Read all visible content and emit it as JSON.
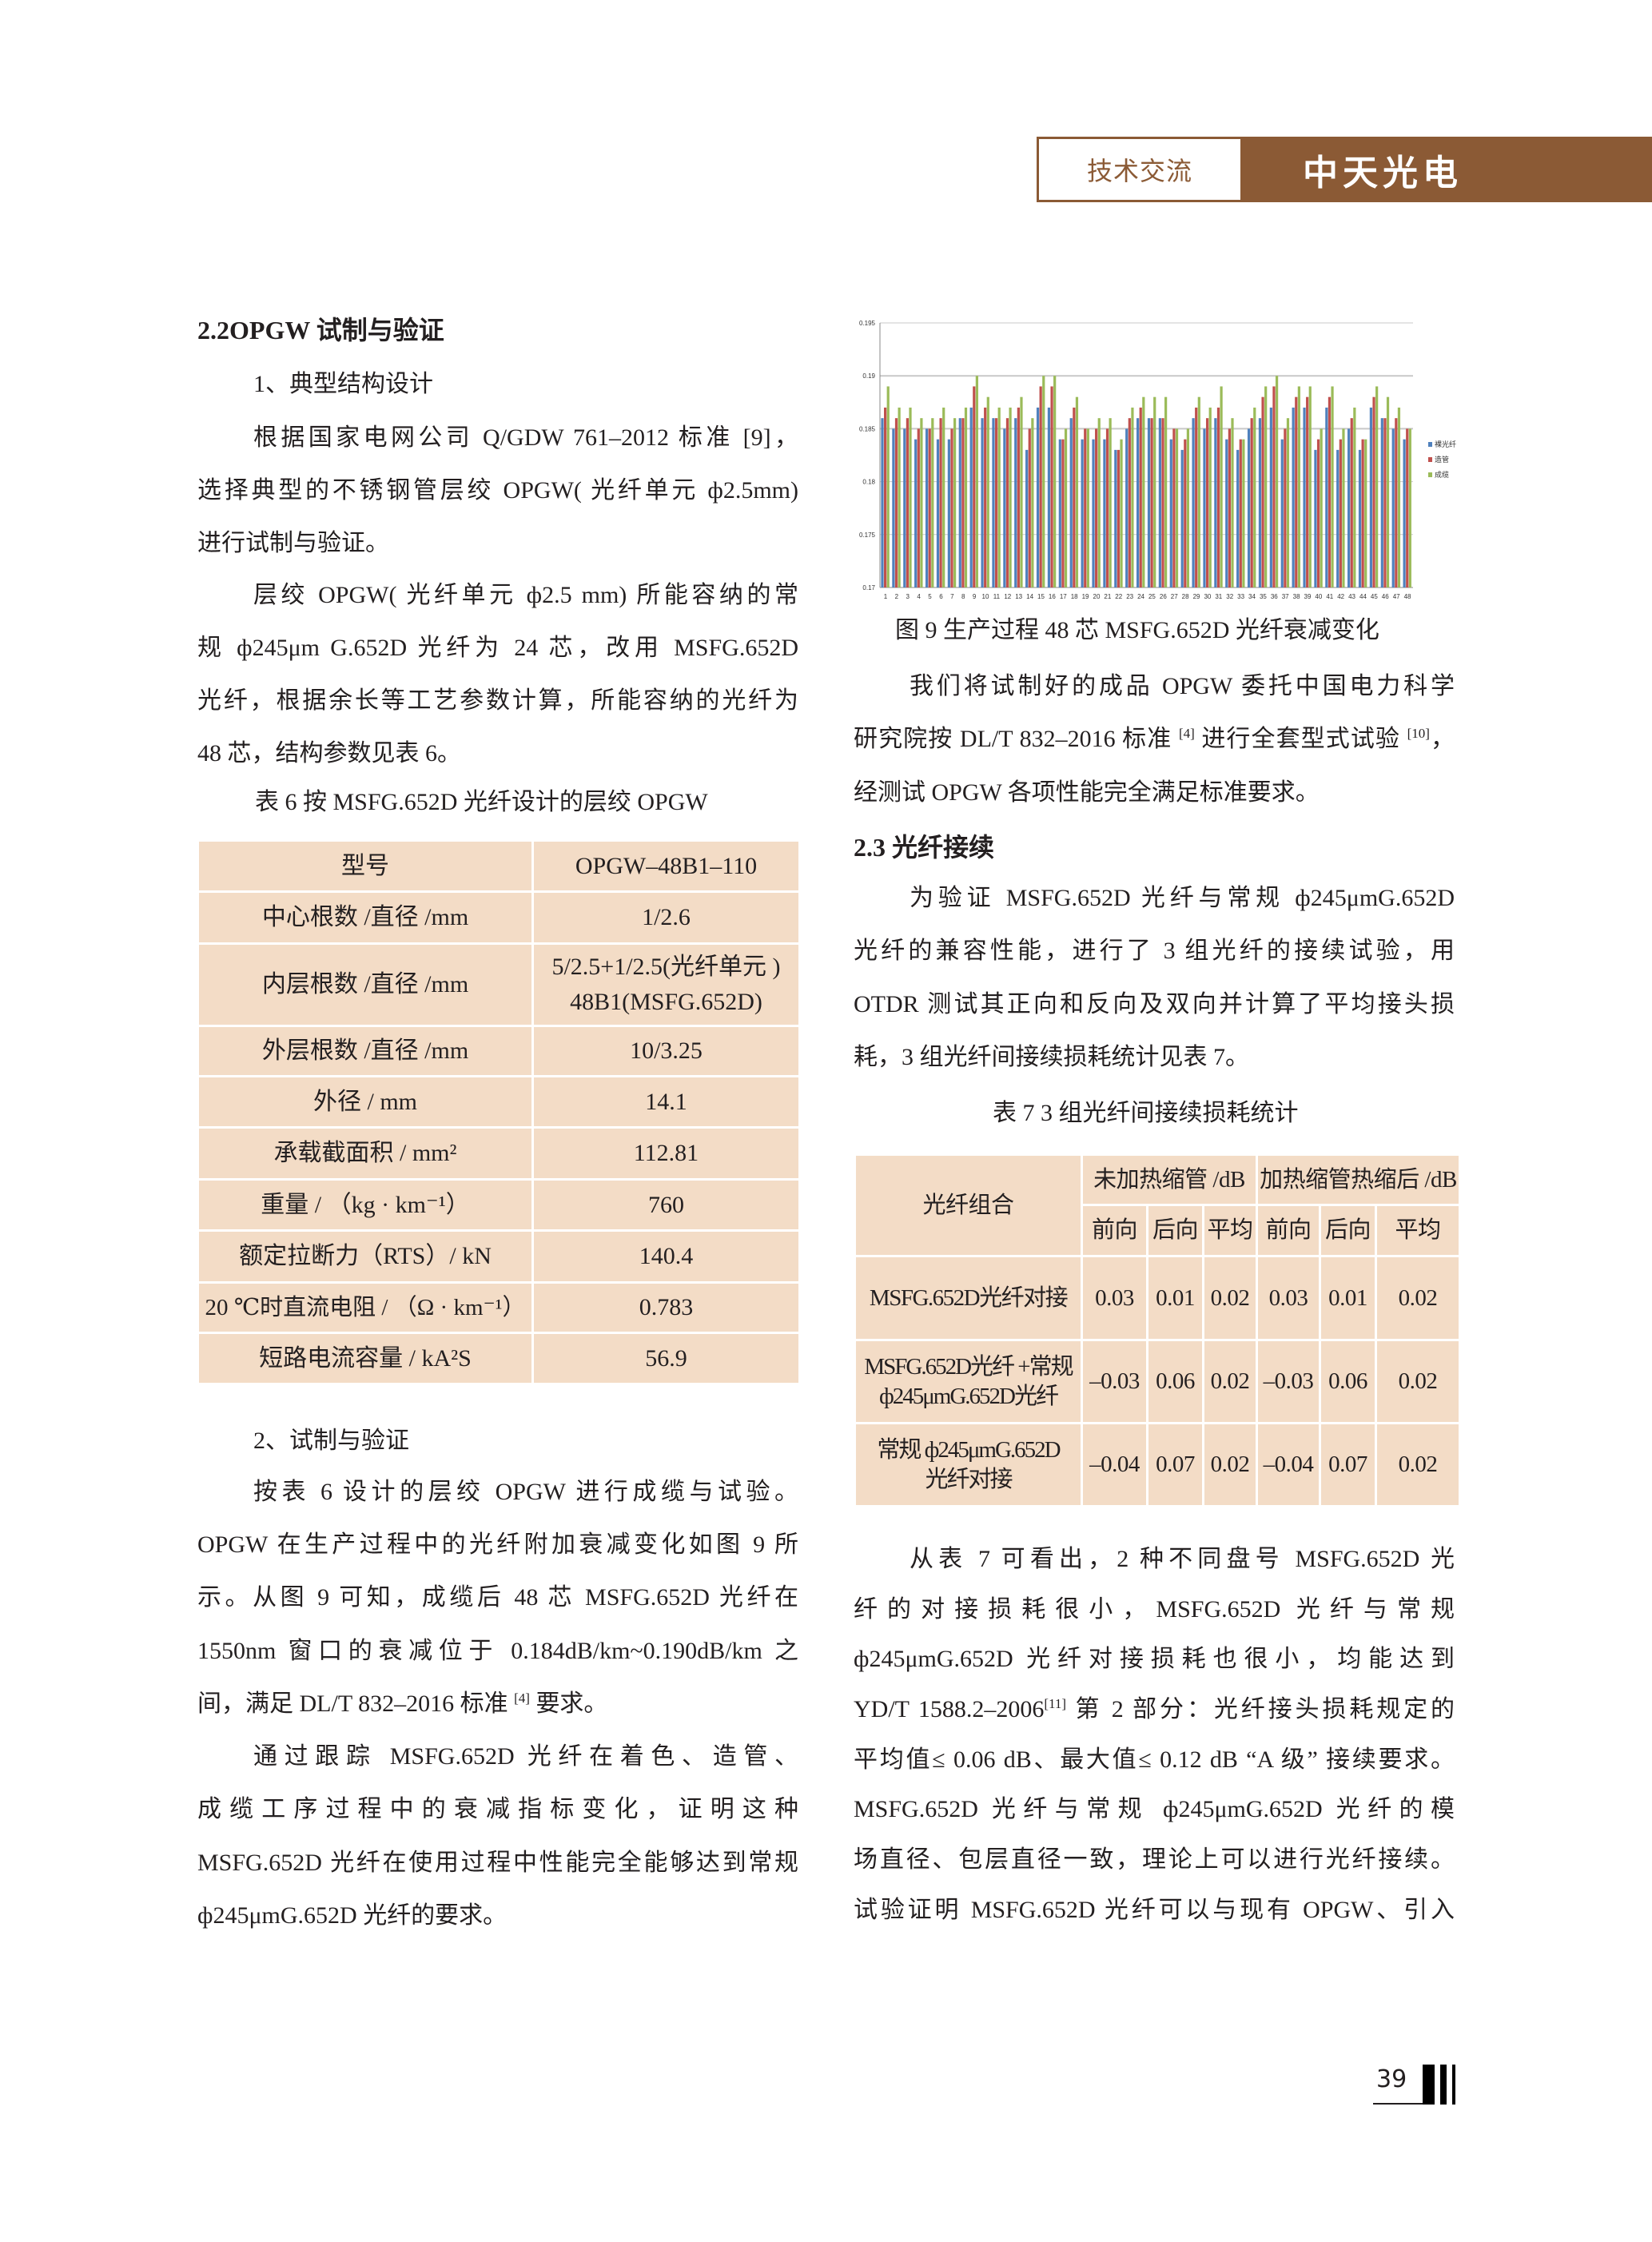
{
  "header": {
    "section_label": "技术交流",
    "brand": "中天光电"
  },
  "left": {
    "lines": [
      [
        {
          "t": "2.2OPGW 试制与验证"
        }
      ],
      [
        {
          "t": "1、典型结构设计"
        }
      ],
      [
        {
          "t": "根据国家电网公司 Q/GDW 761–2012 标准 [9]，"
        }
      ],
      [
        {
          "t": "选择典型的不锈钢管层绞 OPGW( 光纤单元 ф2.5mm)"
        }
      ],
      [
        {
          "t": "进行试制与验证。"
        }
      ],
      [
        {
          "t": "层绞 OPGW( 光纤单元 ф2.5 mm) 所能容纳的常"
        }
      ],
      [
        {
          "t": "规 ф245μm G.652D 光纤为 24 芯，改用 MSFG.652D"
        }
      ],
      [
        {
          "t": "光纤，根据余长等工艺参数计算，所能容纳的光纤为"
        }
      ],
      [
        {
          "t": "48 芯，结构参数见表 6。"
        }
      ],
      [
        {
          "t": "表 6 按 MSFG.652D 光纤设计的层绞 OPGW"
        }
      ],
      [
        {
          "t": "2、试制与验证"
        }
      ],
      [
        {
          "t": "按表 6 设计的层绞 OPGW 进行成缆与试验。"
        }
      ],
      [
        {
          "t": "OPGW 在生产过程中的光纤附加衰减变化如图 9 所"
        }
      ],
      [
        {
          "t": "示。从图 9 可知，成缆后 48 芯 MSFG.652D 光纤在"
        }
      ],
      [
        {
          "t": "1550nm 窗口的衰减位于 0.184dB/km~0.190dB/km 之"
        }
      ],
      [
        {
          "t": "间，满足 DL/T 832–2016 标准 "
        },
        {
          "sup": "[4]"
        },
        {
          "t": " 要求。"
        }
      ],
      [
        {
          "t": "通过跟踪 MSFG.652D 光纤在着色、造管、"
        }
      ],
      [
        {
          "t": "成缆工序过程中的衰减指标变化，证明这种"
        }
      ],
      [
        {
          "t": "MSFG.652D 光纤在使用过程中性能完全能够达到常规"
        }
      ],
      [
        {
          "t": "ф245μmG.652D 光纤的要求。"
        }
      ]
    ]
  },
  "right": {
    "lines": [
      [
        {
          "t": "图 9 生产过程 48 芯 MSFG.652D 光纤衰减变化"
        }
      ],
      [
        {
          "t": "我们将试制好的成品 OPGW 委托中国电力科学"
        }
      ],
      [
        {
          "t": "研究院按 DL/T 832–2016 标准 "
        },
        {
          "sup": "[4]"
        },
        {
          "t": " 进行全套型式试验 "
        },
        {
          "sup": "[10]"
        },
        {
          "t": "，"
        }
      ],
      [
        {
          "t": "经测试 OPGW 各项性能完全满足标准要求。"
        }
      ],
      [
        {
          "t": "2.3 光纤接续"
        }
      ],
      [
        {
          "t": "为验证 MSFG.652D 光纤与常规 ф245μmG.652D"
        }
      ],
      [
        {
          "t": "光纤的兼容性能，进行了 3 组光纤的接续试验，用"
        }
      ],
      [
        {
          "t": "OTDR 测试其正向和反向及双向并计算了平均接头损"
        }
      ],
      [
        {
          "t": "耗，3 组光纤间接续损耗统计见表 7。"
        }
      ],
      [
        {
          "t": "表 7 3 组光纤间接续损耗统计"
        }
      ],
      [
        {
          "t": "从表 7 可看出，2 种不同盘号 MSFG.652D 光"
        }
      ],
      [
        {
          "t": "纤的对接损耗很小，MSFG.652D 光纤与常规"
        }
      ],
      [
        {
          "t": "ф245μmG.652D 光纤对接损耗也很小，均能达到"
        }
      ],
      [
        {
          "t": "YD/T 1588.2–2006"
        },
        {
          "sup": "[11]"
        },
        {
          "t": " 第 2 部分：光纤接头损耗规定的"
        }
      ],
      [
        {
          "t": "平均值≤ 0.06 dB、最大值≤ 0.12 dB “A 级” 接续要求。"
        }
      ],
      [
        {
          "t": "MSFG.652D 光纤与常规 ф245μmG.652D 光纤的模"
        }
      ],
      [
        {
          "t": "场直径、包层直径一致，理论上可以进行光纤接续。"
        }
      ],
      [
        {
          "t": "试验证明 MSFG.652D 光纤可以与现有 OPGW、引入"
        }
      ]
    ]
  },
  "table6": {
    "rows": [
      [
        "型号",
        "OPGW–48B1–110"
      ],
      [
        "中心根数 /直径 /mm",
        "1/2.6"
      ],
      [
        "内层根数 /直径 /mm",
        "5/2.5+1/2.5(光纤单元 )",
        "48B1(MSFG.652D)"
      ],
      [
        "外层根数 /直径 /mm",
        "10/3.25"
      ],
      [
        "外径 / mm",
        "14.1"
      ],
      [
        "承载截面积 / mm²",
        "112.81"
      ],
      [
        "重量 / （kg · km⁻¹）",
        "760"
      ],
      [
        "额定拉断力（RTS）/ kN",
        "140.4"
      ],
      [
        "20 ℃时直流电阻 / （Ω · km⁻¹）",
        "0.783"
      ],
      [
        "短路电流容量 / kA²S",
        "56.9"
      ]
    ]
  },
  "table7": {
    "header": {
      "combo": "光纤组合",
      "group1": "未加热缩管 /dB",
      "group2": "加热缩管热缩后 /dB",
      "sub": [
        "前向",
        "后向",
        "平均",
        "前向",
        "后向",
        "平均"
      ]
    },
    "rows": [
      {
        "name": [
          "MSFG.652D光纤对接"
        ],
        "values": [
          "0.03",
          "0.01",
          "0.02",
          "0.03",
          "0.01",
          "0.02"
        ]
      },
      {
        "name": [
          "MSFG.652D光纤 +常规",
          "ф245μmG.652D光纤"
        ],
        "values": [
          "–0.03",
          "0.06",
          "0.02",
          "–0.03",
          "0.06",
          "0.02"
        ]
      },
      {
        "name": [
          "常规 ф245μmG.652D",
          "光纤对接"
        ],
        "values": [
          "–0.04",
          "0.07",
          "0.02",
          "–0.04",
          "0.07",
          "0.02"
        ]
      }
    ]
  },
  "chart_data": {
    "type": "bar",
    "title": "",
    "xlabel": "",
    "ylabel": "",
    "ylim": [
      0.17,
      0.195
    ],
    "yticks": [
      "0.17",
      "0.175",
      "0.18",
      "0.185",
      "0.19",
      "0.195"
    ],
    "grid": true,
    "legend_position": "right",
    "categories": [
      "1",
      "2",
      "3",
      "4",
      "5",
      "6",
      "7",
      "8",
      "9",
      "10",
      "11",
      "12",
      "13",
      "14",
      "15",
      "16",
      "17",
      "18",
      "19",
      "20",
      "21",
      "22",
      "23",
      "24",
      "25",
      "26",
      "27",
      "28",
      "29",
      "30",
      "31",
      "32",
      "33",
      "34",
      "35",
      "36",
      "37",
      "38",
      "39",
      "40",
      "41",
      "42",
      "43",
      "44",
      "45",
      "46",
      "47",
      "48"
    ],
    "series": [
      {
        "name": "裸光纤",
        "color": "#4f81bd",
        "values": [
          0.186,
          0.185,
          0.185,
          0.184,
          0.185,
          0.184,
          0.184,
          0.186,
          0.187,
          0.186,
          0.186,
          0.185,
          0.186,
          0.183,
          0.187,
          0.187,
          0.184,
          0.186,
          0.184,
          0.184,
          0.184,
          0.183,
          0.185,
          0.186,
          0.186,
          0.186,
          0.184,
          0.183,
          0.186,
          0.185,
          0.186,
          0.184,
          0.183,
          0.185,
          0.186,
          0.187,
          0.184,
          0.187,
          0.187,
          0.183,
          0.187,
          0.183,
          0.185,
          0.183,
          0.187,
          0.186,
          0.185,
          0.184
        ]
      },
      {
        "name": "造管",
        "color": "#c0504d",
        "values": [
          0.187,
          0.186,
          0.186,
          0.185,
          0.185,
          0.186,
          0.185,
          0.186,
          0.189,
          0.187,
          0.186,
          0.186,
          0.187,
          0.185,
          0.189,
          0.189,
          0.184,
          0.187,
          0.185,
          0.185,
          0.185,
          0.183,
          0.186,
          0.187,
          0.186,
          0.186,
          0.185,
          0.184,
          0.187,
          0.186,
          0.187,
          0.185,
          0.184,
          0.186,
          0.188,
          0.189,
          0.185,
          0.188,
          0.188,
          0.184,
          0.188,
          0.184,
          0.186,
          0.184,
          0.188,
          0.186,
          0.186,
          0.185
        ]
      },
      {
        "name": "成缆",
        "color": "#9bbb59",
        "values": [
          0.189,
          0.187,
          0.187,
          0.186,
          0.186,
          0.187,
          0.186,
          0.187,
          0.19,
          0.188,
          0.187,
          0.187,
          0.188,
          0.186,
          0.19,
          0.19,
          0.185,
          0.188,
          0.185,
          0.186,
          0.186,
          0.184,
          0.187,
          0.188,
          0.188,
          0.188,
          0.185,
          0.185,
          0.188,
          0.187,
          0.189,
          0.186,
          0.184,
          0.187,
          0.189,
          0.19,
          0.186,
          0.189,
          0.189,
          0.185,
          0.189,
          0.185,
          0.187,
          0.184,
          0.189,
          0.188,
          0.187,
          0.185
        ]
      }
    ]
  },
  "footer": {
    "page_number": "39"
  }
}
